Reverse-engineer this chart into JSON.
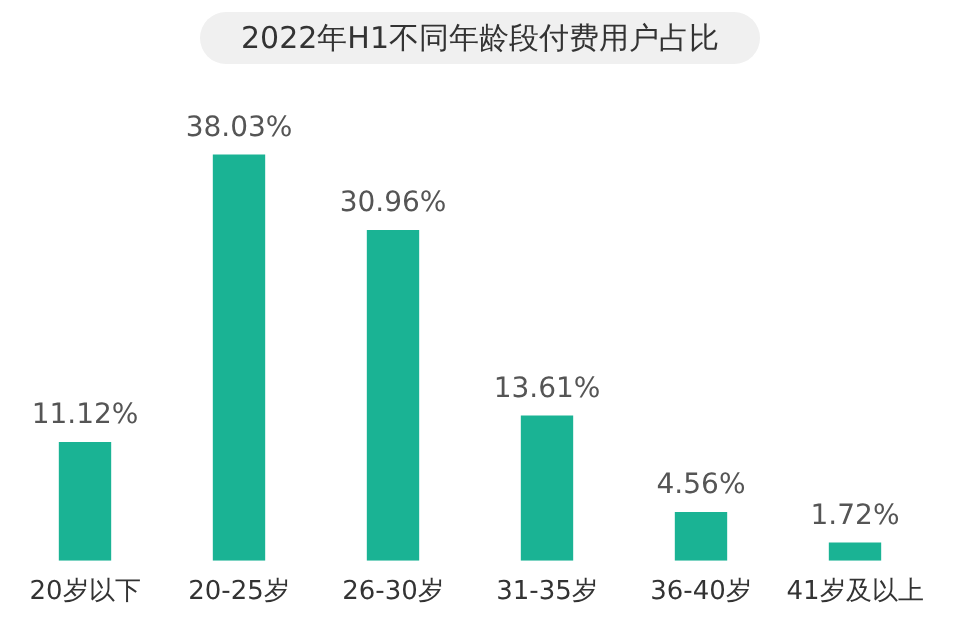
{
  "chart_data": {
    "type": "bar",
    "title": "2022年H1不同年龄段付费用户占比",
    "categories": [
      "20岁以下",
      "20-25岁",
      "26-30岁",
      "31-35岁",
      "36-40岁",
      "41岁及以上"
    ],
    "values": [
      11.12,
      38.03,
      30.96,
      13.61,
      4.56,
      1.72
    ],
    "value_labels": [
      "11.12%",
      "38.03%",
      "30.96%",
      "13.61%",
      "4.56%",
      "1.72%"
    ],
    "color": "#1ab394",
    "grid": false,
    "legend": false
  }
}
